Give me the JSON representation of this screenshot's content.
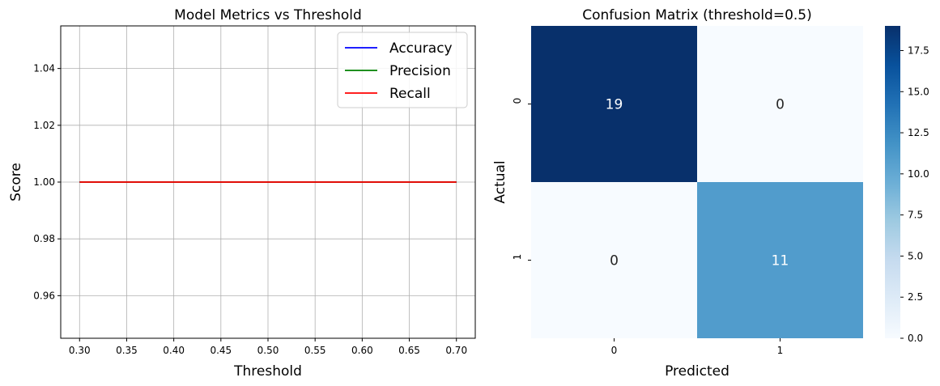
{
  "chart_data": [
    {
      "type": "line",
      "title": "Model Metrics vs Threshold",
      "xlabel": "Threshold",
      "ylabel": "Score",
      "x": [
        0.3,
        0.35,
        0.4,
        0.45,
        0.5,
        0.55,
        0.6,
        0.65,
        0.7
      ],
      "series": [
        {
          "name": "Accuracy",
          "color": "#0000ff",
          "values": [
            1.0,
            1.0,
            1.0,
            1.0,
            1.0,
            1.0,
            1.0,
            1.0,
            1.0
          ]
        },
        {
          "name": "Precision",
          "color": "#008000",
          "values": [
            1.0,
            1.0,
            1.0,
            1.0,
            1.0,
            1.0,
            1.0,
            1.0,
            1.0
          ]
        },
        {
          "name": "Recall",
          "color": "#ff0000",
          "values": [
            1.0,
            1.0,
            1.0,
            1.0,
            1.0,
            1.0,
            1.0,
            1.0,
            1.0
          ]
        }
      ],
      "xlim": [
        0.28,
        0.72
      ],
      "ylim": [
        0.945,
        1.055
      ],
      "xticks": [
        "0.30",
        "0.35",
        "0.40",
        "0.45",
        "0.50",
        "0.55",
        "0.60",
        "0.65",
        "0.70"
      ],
      "yticks": [
        "0.96",
        "0.98",
        "1.00",
        "1.02",
        "1.04"
      ],
      "grid": true,
      "legend": "top-right"
    },
    {
      "type": "heatmap",
      "title": "Confusion Matrix (threshold=0.5)",
      "xlabel": "Predicted",
      "ylabel": "Actual",
      "x_categories": [
        "0",
        "1"
      ],
      "y_categories": [
        "0",
        "1"
      ],
      "values": [
        [
          19,
          0
        ],
        [
          0,
          11
        ]
      ],
      "colormap": "Blues",
      "vmin": 0,
      "vmax": 19,
      "colorbar_ticks": [
        "0.0",
        "2.5",
        "5.0",
        "7.5",
        "10.0",
        "12.5",
        "15.0",
        "17.5"
      ]
    }
  ]
}
